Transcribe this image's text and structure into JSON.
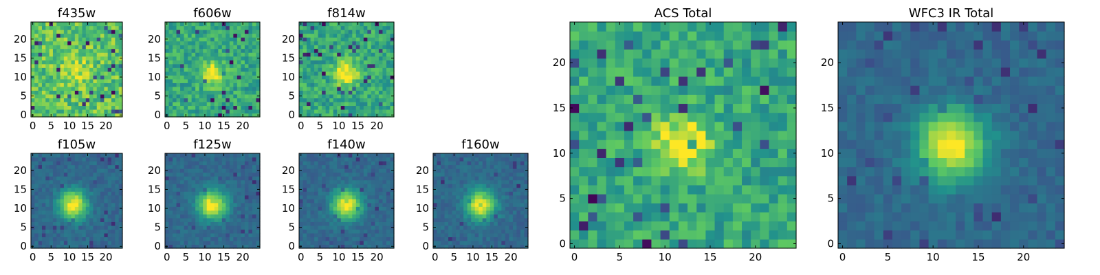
{
  "figure": {
    "panels": [
      {
        "id": "f435w",
        "title": "f435w",
        "xticks": [
          "0",
          "5",
          "10",
          "15",
          "20"
        ],
        "yticks": [
          "0",
          "5",
          "10",
          "15",
          "20"
        ],
        "pattern": "noisy-bright",
        "peak": [
          12,
          12
        ]
      },
      {
        "id": "f606w",
        "title": "f606w",
        "xticks": [
          "0",
          "5",
          "10",
          "15",
          "20"
        ],
        "yticks": [
          "0",
          "5",
          "10",
          "15",
          "20"
        ],
        "pattern": "noisy-peak",
        "peak": [
          12,
          11
        ]
      },
      {
        "id": "f814w",
        "title": "f814w",
        "xticks": [
          "0",
          "5",
          "10",
          "15",
          "20"
        ],
        "yticks": [
          "0",
          "5",
          "10",
          "15",
          "20"
        ],
        "pattern": "noisy-peak",
        "peak": [
          12,
          11
        ]
      },
      {
        "id": "f105w",
        "title": "f105w",
        "xticks": [
          "0",
          "5",
          "10",
          "15",
          "20"
        ],
        "yticks": [
          "0",
          "5",
          "10",
          "15",
          "20"
        ],
        "pattern": "smooth-peak",
        "peak": [
          11,
          11
        ]
      },
      {
        "id": "f125w",
        "title": "f125w",
        "xticks": [
          "0",
          "5",
          "10",
          "15",
          "20"
        ],
        "yticks": [
          "0",
          "5",
          "10",
          "15",
          "20"
        ],
        "pattern": "smooth-peak",
        "peak": [
          12,
          11
        ]
      },
      {
        "id": "f140w",
        "title": "f140w",
        "xticks": [
          "0",
          "5",
          "10",
          "15",
          "20"
        ],
        "yticks": [
          "0",
          "5",
          "10",
          "15",
          "20"
        ],
        "pattern": "smooth-peak",
        "peak": [
          12,
          11
        ]
      },
      {
        "id": "f160w",
        "title": "f160w",
        "xticks": [
          "0",
          "5",
          "10",
          "15",
          "20"
        ],
        "yticks": [
          "0",
          "5",
          "10",
          "15",
          "20"
        ],
        "pattern": "smooth-peak",
        "peak": [
          12,
          11
        ]
      },
      {
        "id": "acs_total",
        "title": "ACS Total",
        "xticks": [
          "0",
          "5",
          "10",
          "15",
          "20"
        ],
        "yticks": [
          "0",
          "5",
          "10",
          "15",
          "20"
        ],
        "pattern": "noisy-peak",
        "peak": [
          12,
          11
        ]
      },
      {
        "id": "wfc3_ir_total",
        "title": "WFC3 IR Total",
        "xticks": [
          "0",
          "5",
          "10",
          "15",
          "20"
        ],
        "yticks": [
          "0",
          "5",
          "10",
          "15",
          "20"
        ],
        "pattern": "smooth-peak",
        "peak": [
          12,
          11
        ]
      }
    ],
    "colormap": [
      "#440154",
      "#3b528b",
      "#21918c",
      "#5ec962",
      "#fde725"
    ],
    "grid_size": 25
  }
}
